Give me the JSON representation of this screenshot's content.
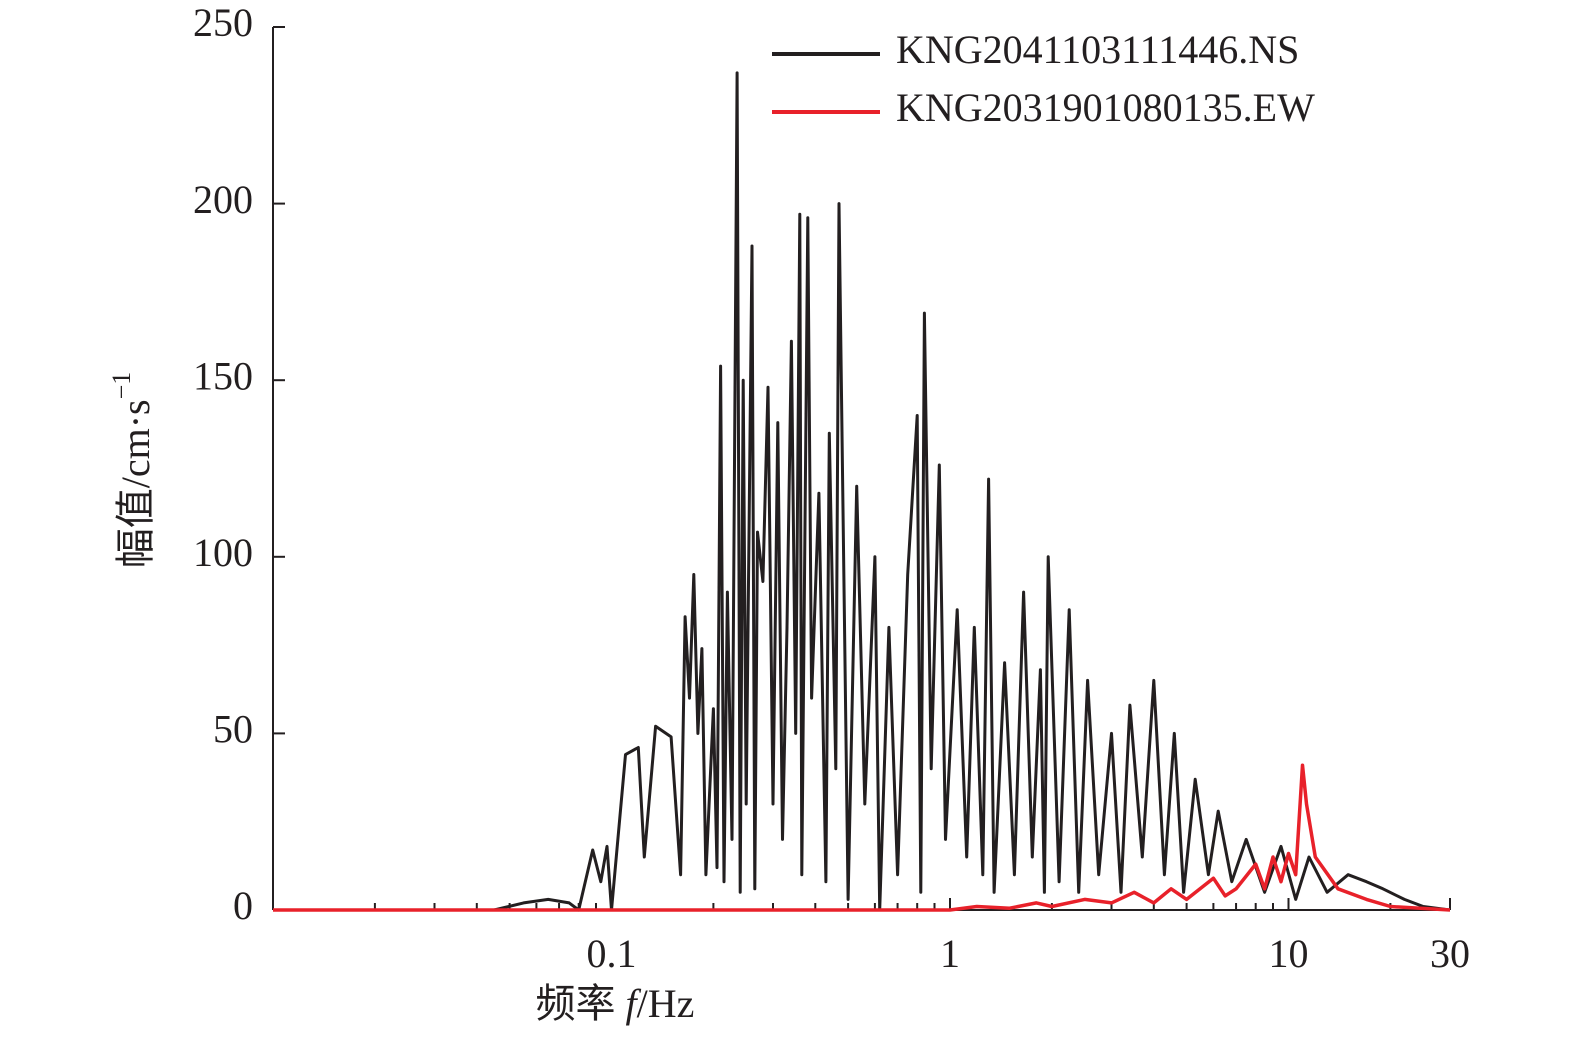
{
  "chart_data": {
    "type": "line",
    "xlabel_parts": [
      "频率 ",
      "f",
      "/Hz"
    ],
    "ylabel_parts": [
      "幅值/cm·s",
      "−1"
    ],
    "log_x": true,
    "xlim": [
      0.01,
      30
    ],
    "ylim": [
      0,
      250
    ],
    "xticks": [
      0.1,
      1,
      10,
      30
    ],
    "xminor_ticks": [
      0.02,
      0.03,
      0.04,
      0.05,
      0.06,
      0.07,
      0.08,
      0.09,
      0.2,
      0.3,
      0.4,
      0.5,
      0.6,
      0.7,
      0.8,
      0.9,
      2,
      3,
      4,
      5,
      6,
      7,
      8,
      9,
      20
    ],
    "yticks": [
      0,
      50,
      100,
      150,
      200,
      250
    ],
    "legend": "upper right",
    "series": [
      {
        "name": "KNG2041103111446.NS",
        "color": "#231f20",
        "x": [
          0.01,
          0.045,
          0.055,
          0.065,
          0.075,
          0.08,
          0.088,
          0.093,
          0.097,
          0.1,
          0.11,
          0.12,
          0.125,
          0.135,
          0.15,
          0.16,
          0.165,
          0.17,
          0.175,
          0.18,
          0.185,
          0.19,
          0.2,
          0.205,
          0.21,
          0.215,
          0.22,
          0.227,
          0.235,
          0.24,
          0.245,
          0.25,
          0.26,
          0.265,
          0.27,
          0.28,
          0.29,
          0.3,
          0.31,
          0.32,
          0.33,
          0.34,
          0.35,
          0.36,
          0.365,
          0.38,
          0.39,
          0.41,
          0.43,
          0.44,
          0.46,
          0.47,
          0.5,
          0.53,
          0.56,
          0.6,
          0.62,
          0.66,
          0.7,
          0.75,
          0.8,
          0.82,
          0.84,
          0.88,
          0.93,
          0.97,
          1.05,
          1.12,
          1.18,
          1.25,
          1.3,
          1.35,
          1.45,
          1.55,
          1.65,
          1.75,
          1.85,
          1.9,
          1.95,
          2.1,
          2.25,
          2.4,
          2.55,
          2.75,
          3.0,
          3.2,
          3.4,
          3.7,
          4.0,
          4.3,
          4.6,
          4.9,
          5.3,
          5.8,
          6.2,
          6.8,
          7.5,
          8.5,
          9.5,
          10.5,
          11.5,
          13,
          15,
          17,
          19,
          22,
          25,
          30
        ],
        "values": [
          0,
          0,
          2,
          3,
          2,
          0,
          17,
          8,
          18,
          0,
          44,
          46,
          15,
          52,
          49,
          10,
          83,
          60,
          95,
          50,
          74,
          10,
          57,
          12,
          154,
          8,
          90,
          20,
          237,
          5,
          150,
          30,
          188,
          6,
          107,
          93,
          148,
          30,
          138,
          20,
          80,
          161,
          50,
          197,
          10,
          196,
          60,
          118,
          8,
          135,
          40,
          200,
          3,
          120,
          30,
          100,
          0,
          80,
          10,
          95,
          140,
          5,
          169,
          40,
          126,
          20,
          85,
          15,
          80,
          10,
          122,
          5,
          70,
          10,
          90,
          15,
          68,
          5,
          100,
          8,
          85,
          5,
          65,
          10,
          50,
          5,
          58,
          15,
          65,
          10,
          50,
          5,
          37,
          10,
          28,
          8,
          20,
          5,
          18,
          3,
          15,
          5,
          10,
          8,
          6,
          3,
          1,
          0
        ]
      },
      {
        "name": "KNG2031901080135.EW",
        "color": "#e8212a",
        "x": [
          0.01,
          1.0,
          1.2,
          1.5,
          1.8,
          2.0,
          2.5,
          3.0,
          3.5,
          4.0,
          4.5,
          5.0,
          6.0,
          6.5,
          7.0,
          8.0,
          8.5,
          9.0,
          9.5,
          10.0,
          10.5,
          11.0,
          11.3,
          12.0,
          14.0,
          17.0,
          20.0,
          30.0
        ],
        "values": [
          0,
          0,
          1,
          0.5,
          2,
          1,
          3,
          2,
          5,
          2,
          6,
          3,
          9,
          4,
          6,
          13,
          6,
          15,
          8,
          16,
          10,
          41,
          30,
          15,
          6,
          3,
          1,
          0
        ]
      }
    ]
  }
}
